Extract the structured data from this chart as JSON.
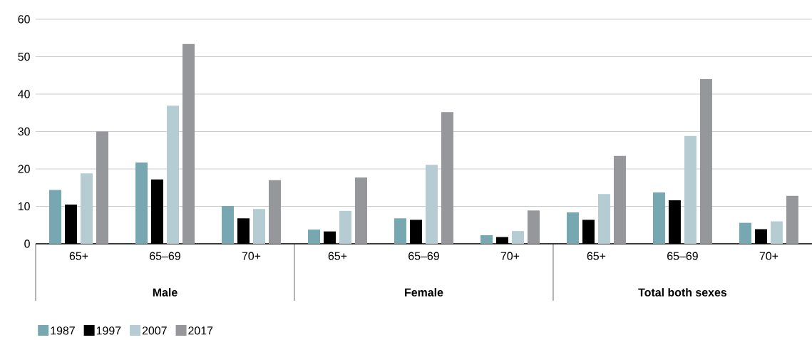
{
  "chart_data": {
    "type": "bar",
    "categories": [
      "65+",
      "65–69",
      "70+",
      "65+",
      "65–69",
      "70+",
      "65+",
      "65–69",
      "70+"
    ],
    "annotations": [
      "Male",
      "Female",
      "Total both sexes"
    ],
    "series": [
      {
        "name": "1987",
        "color": "#77a8b2",
        "values": [
          14.4,
          21.7,
          10.1,
          3.8,
          6.8,
          2.3,
          8.4,
          13.7,
          5.6
        ]
      },
      {
        "name": "1997",
        "color": "#000000",
        "values": [
          10.5,
          17.2,
          6.8,
          3.3,
          6.4,
          1.8,
          6.4,
          11.6,
          3.9
        ]
      },
      {
        "name": "2007",
        "color": "#b5ccd3",
        "values": [
          18.8,
          36.9,
          9.3,
          8.8,
          21.1,
          3.4,
          13.3,
          28.8,
          6.0
        ]
      },
      {
        "name": "2017",
        "color": "#96979b",
        "values": [
          30.0,
          53.4,
          17.0,
          17.7,
          35.2,
          8.9,
          23.5,
          44.0,
          12.8
        ]
      }
    ],
    "ylim": [
      0,
      60
    ],
    "yticks": [
      0,
      10,
      20,
      30,
      40,
      50,
      60
    ],
    "grid": "y",
    "legend": "bottom left"
  }
}
